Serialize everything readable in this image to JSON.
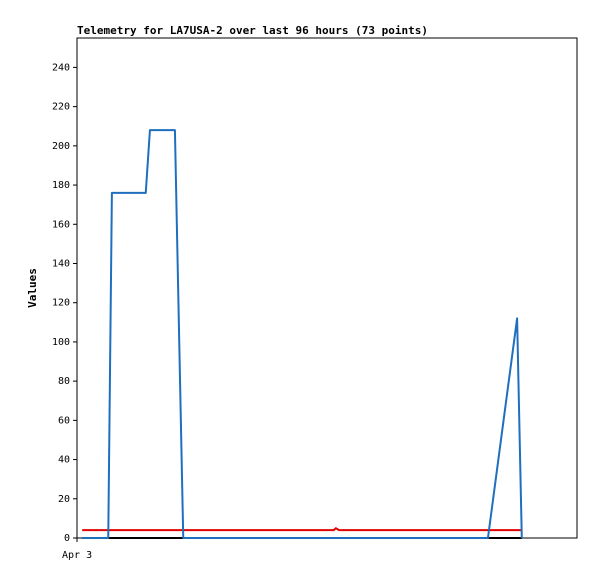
{
  "chart_data": {
    "type": "line",
    "title": "Telemetry for LA7USA-2 over last 96 hours (73 points)",
    "y_label": "Values",
    "xlim": [
      0,
      96
    ],
    "xticks": [
      {
        "value": 0,
        "label": "Apr 3"
      }
    ],
    "ylim": [
      0,
      255
    ],
    "yticks": [
      0,
      20,
      40,
      60,
      80,
      100,
      120,
      140,
      160,
      180,
      200,
      220,
      240
    ],
    "series": [
      {
        "color": "#000000",
        "x": [
          1.0,
          85.4
        ],
        "values": [
          0,
          0
        ]
      },
      {
        "color": "#e00000",
        "x": [
          1.0,
          49.3,
          49.7,
          50.3,
          85.4
        ],
        "values": [
          4,
          4,
          5,
          4,
          4
        ]
      },
      {
        "color": "#1f6fbf",
        "x": [
          1.0,
          6.0,
          6.7,
          13.2,
          14.0,
          18.8,
          20.4,
          78.9,
          84.5,
          85.4
        ],
        "values": [
          0,
          0,
          176,
          176,
          208,
          208,
          0,
          0,
          112,
          0
        ]
      }
    ]
  }
}
